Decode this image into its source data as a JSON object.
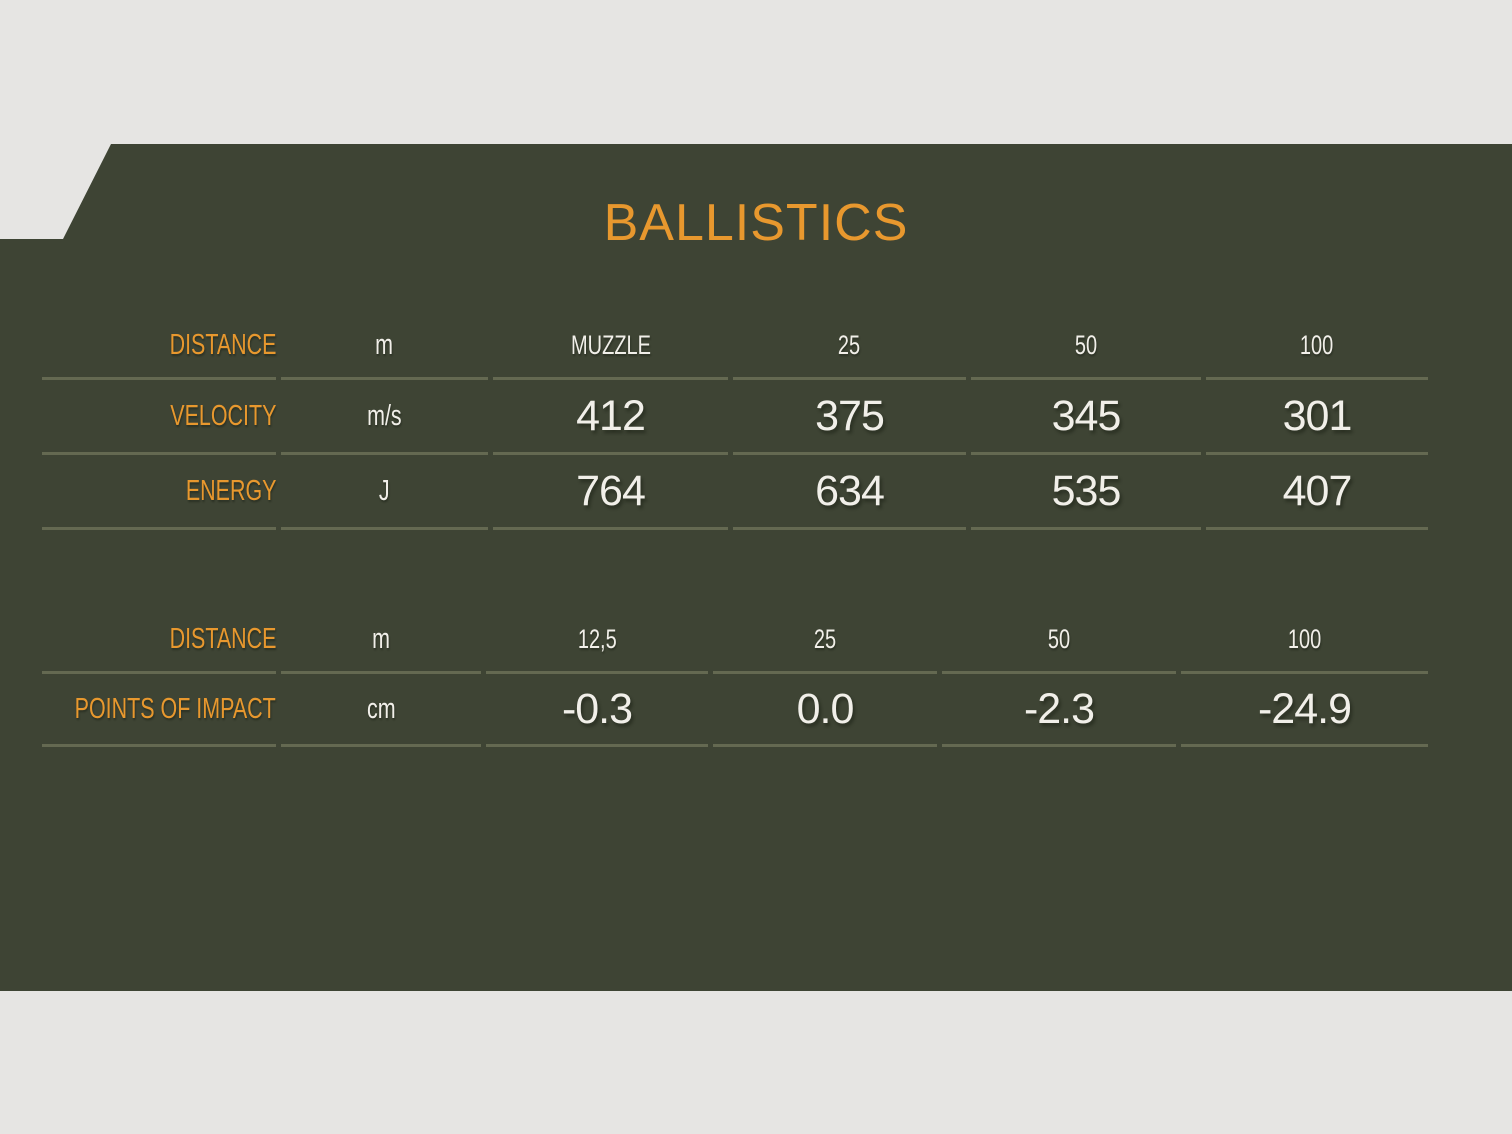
{
  "slide": {
    "title": "BALLISTICS",
    "colors": {
      "canvas_gray": "#e6e5e3",
      "panel_olive": "#3e4434",
      "accent_orange": "#e8982e",
      "text_light": "#f1efe9",
      "divider_sage": "#646951"
    },
    "tables": [
      {
        "id": "velocity-energy",
        "rows": [
          {
            "label": "DISTANCE",
            "unit": "m",
            "values": [
              "MUZZLE",
              "25",
              "50",
              "100"
            ]
          },
          {
            "label": "VELOCITY",
            "unit": "m/s",
            "values": [
              "412",
              "375",
              "345",
              "301"
            ]
          },
          {
            "label": "ENERGY",
            "unit": "J",
            "values": [
              "764",
              "634",
              "535",
              "407"
            ]
          }
        ]
      },
      {
        "id": "points-of-impact",
        "rows": [
          {
            "label": "DISTANCE",
            "unit": "m",
            "values": [
              "12,5",
              "25",
              "50",
              "100"
            ]
          },
          {
            "label": "POINTS OF IMPACT",
            "unit": "cm",
            "values": [
              "-0.3",
              "0.0",
              "-2.3",
              "-24.9"
            ]
          }
        ]
      }
    ]
  }
}
